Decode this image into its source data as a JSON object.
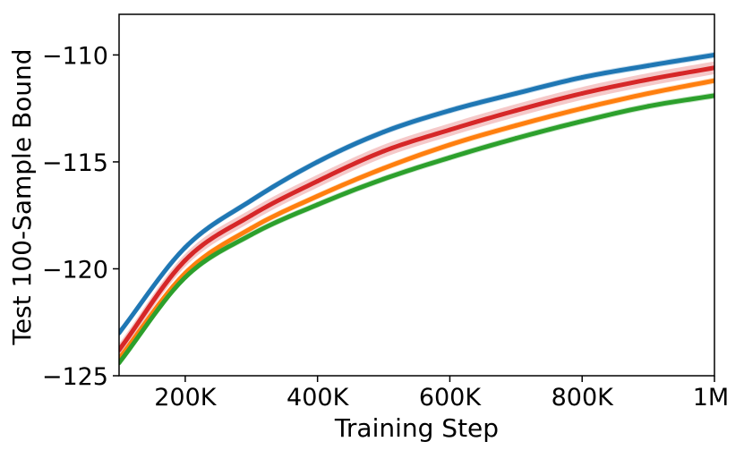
{
  "chart_data": {
    "type": "line",
    "title": "",
    "xlabel": "Training Step",
    "ylabel": "Test 100-Sample Bound",
    "xlim": [
      100000,
      1000000
    ],
    "ylim": [
      -125,
      -108.1
    ],
    "xticks": [
      200000,
      400000,
      600000,
      800000,
      1000000
    ],
    "xtick_labels": [
      "200K",
      "400K",
      "600K",
      "800K",
      "1M"
    ],
    "yticks": [
      -125,
      -120,
      -115,
      -110
    ],
    "ytick_labels": [
      "−125",
      "−120",
      "−115",
      "−110"
    ],
    "grid": false,
    "legend": "none",
    "x": [
      100000,
      200000,
      300000,
      400000,
      500000,
      600000,
      700000,
      800000,
      900000,
      1000000
    ],
    "series": [
      {
        "color": "#1f77b4",
        "values": [
          -123.0,
          -119.0,
          -116.8,
          -115.0,
          -113.6,
          -112.6,
          -111.8,
          -111.05,
          -110.5,
          -110.0
        ],
        "band": 0.15
      },
      {
        "color": "#d62728",
        "values": [
          -123.8,
          -119.6,
          -117.5,
          -115.9,
          -114.5,
          -113.5,
          -112.6,
          -111.8,
          -111.15,
          -110.6
        ],
        "band": 0.3
      },
      {
        "color": "#ff7f0e",
        "values": [
          -124.2,
          -120.2,
          -118.1,
          -116.6,
          -115.3,
          -114.2,
          -113.3,
          -112.5,
          -111.8,
          -111.2
        ],
        "band": 0.15
      },
      {
        "color": "#2ca02c",
        "values": [
          -124.4,
          -120.4,
          -118.4,
          -117.0,
          -115.8,
          -114.8,
          -113.9,
          -113.1,
          -112.4,
          -111.9
        ],
        "band": 0.15
      }
    ]
  }
}
